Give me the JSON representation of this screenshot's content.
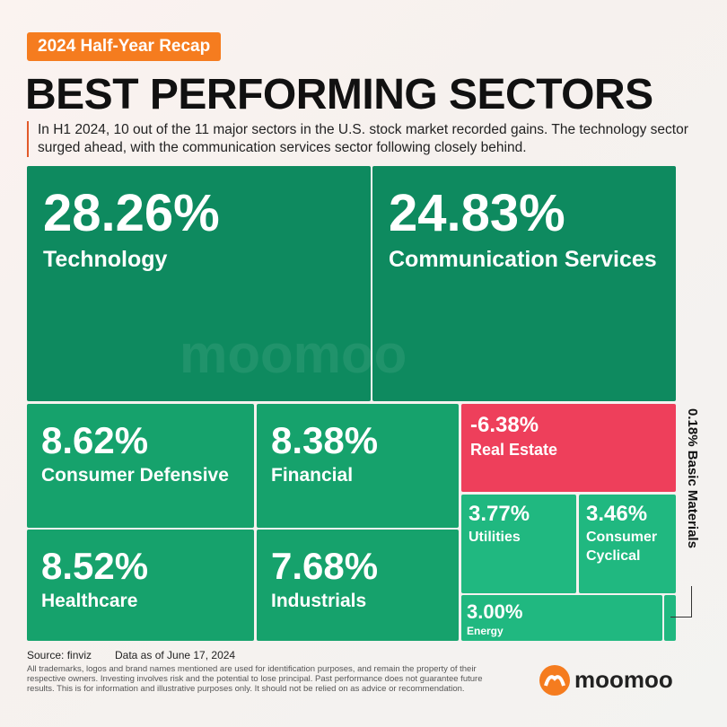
{
  "badge": "2024 Half-Year Recap",
  "title": "BEST PERFORMING SECTORS",
  "subtitle": "In H1 2024, 10 out of the 11 major sectors in the U.S. stock market recorded gains. The technology sector surged ahead, with the communication services sector following closely behind.",
  "chart_data": {
    "type": "treemap",
    "categories": [
      "Technology",
      "Communication Services",
      "Consumer Defensive",
      "Healthcare",
      "Financial",
      "Industrials",
      "Real Estate",
      "Utilities",
      "Consumer Cyclical",
      "Energy",
      "Basic Materials"
    ],
    "values": [
      28.26,
      24.83,
      8.62,
      8.52,
      8.38,
      7.68,
      -6.38,
      3.77,
      3.46,
      3.0,
      0.18
    ],
    "value_labels": [
      "28.26%",
      "24.83%",
      "8.62%",
      "8.52%",
      "8.38%",
      "7.68%",
      "-6.38%",
      "3.77%",
      "3.46%",
      "3.00%",
      "0.18%"
    ],
    "colors": [
      "#0e8a5f",
      "#0e8a5f",
      "#16a26c",
      "#16a26c",
      "#16a26c",
      "#16a26c",
      "#ee3f5b",
      "#20b880",
      "#20b880",
      "#20b880",
      "#20b880"
    ],
    "watermark": "moomoo"
  },
  "source": "Source: finviz",
  "as_of": "Data as of June 17, 2024",
  "disclaimer": "All trademarks, logos and brand names mentioned are used for identification purposes, and remain the property of their respective owners. Investing involves risk and the potential to lose principal. Past performance does not guarantee future results. This is for information and illustrative purposes only. It should not be relied on as advice or recommendation.",
  "logo": "moomoo"
}
